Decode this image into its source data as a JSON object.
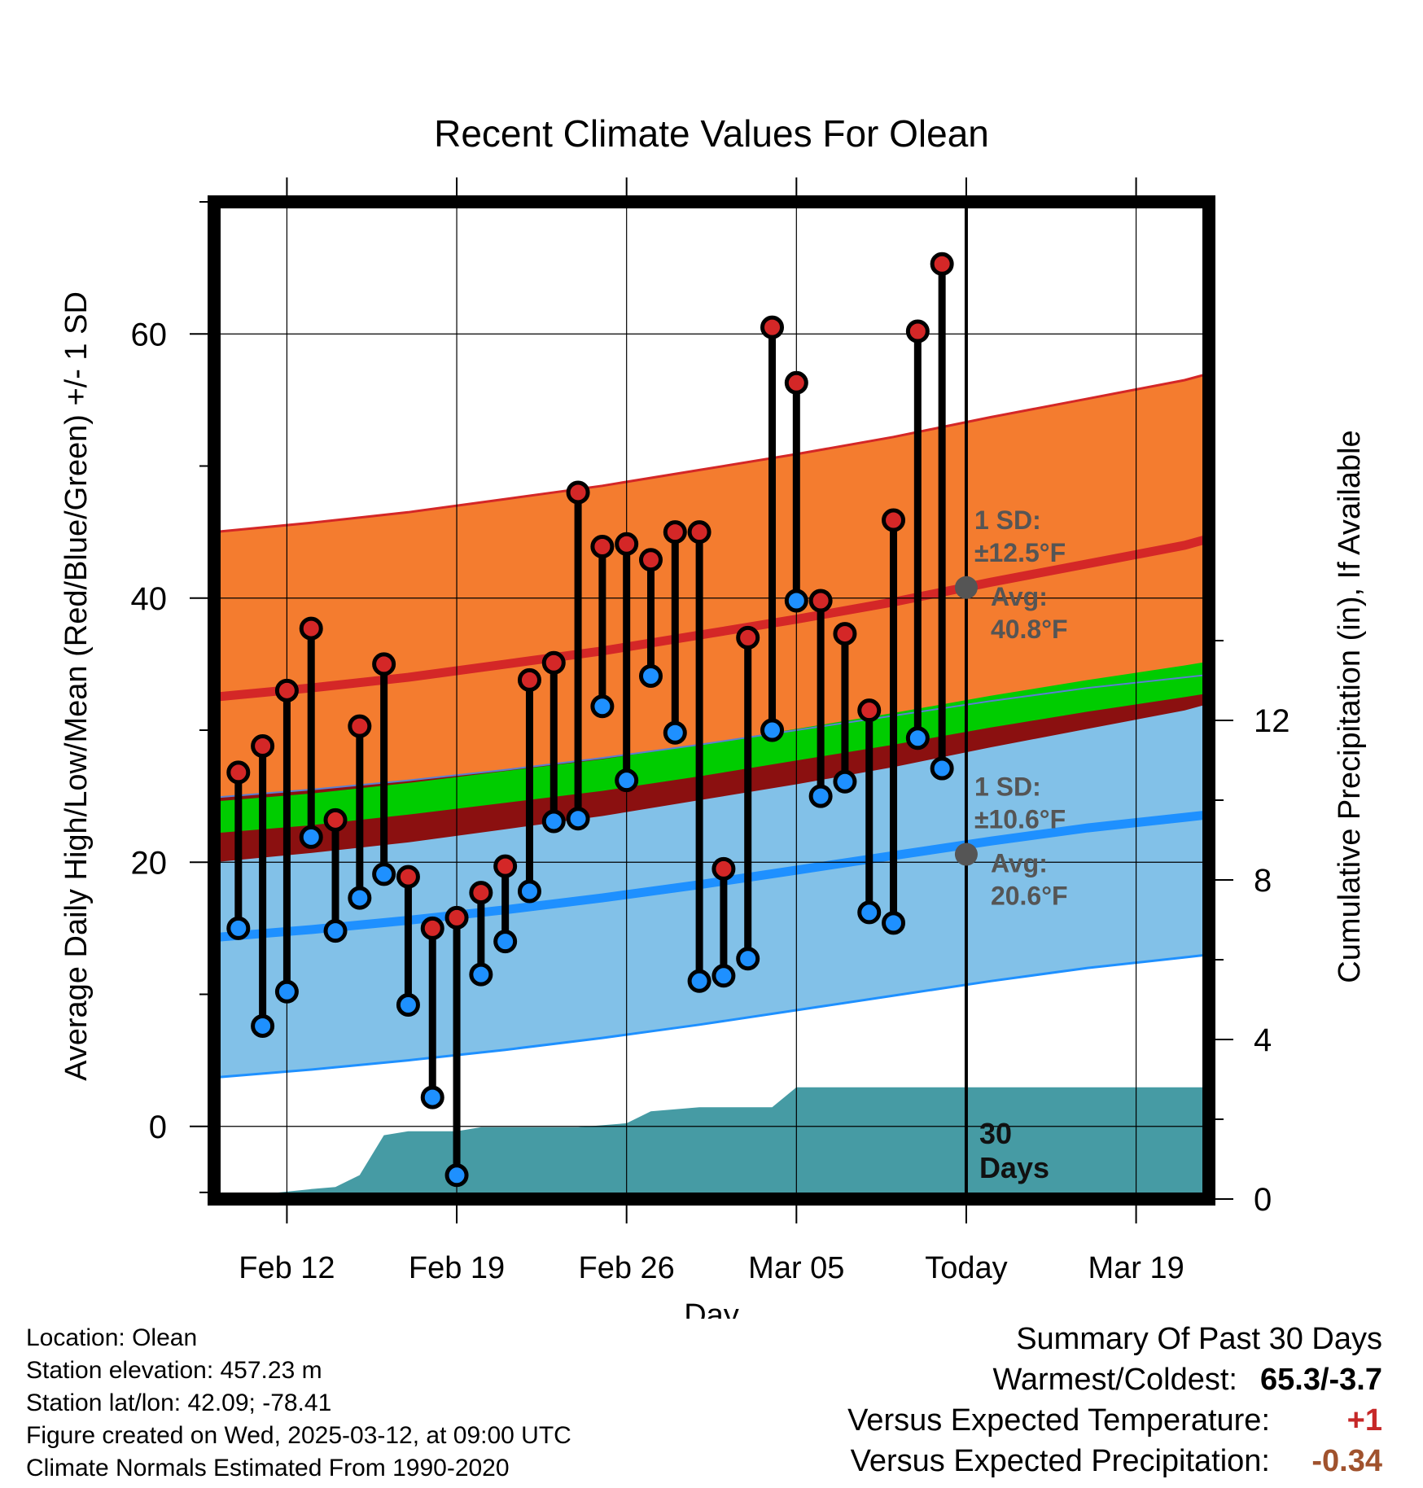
{
  "title": "Recent Climate Values For Olean",
  "xlabel": "Day",
  "ylabel_left": "Average Daily High/Low/Mean (Red/Blue/Green) +/- 1 SD",
  "ylabel_right": "Cumulative Precipitation (in), If Available",
  "annotations": {
    "high_sd_line1": "1 SD:",
    "high_sd_line2": "±12.5°F",
    "high_avg_line1": "Avg:",
    "high_avg_line2": "40.8°F",
    "low_sd_line1": "1 SD:",
    "low_sd_line2": "±10.6°F",
    "low_avg_line1": "Avg:",
    "low_avg_line2": "20.6°F",
    "days_line1": "30",
    "days_line2": "Days"
  },
  "info": {
    "location": "Location: Olean",
    "elevation": "Station elevation: 457.23 m",
    "latlon": "Station lat/lon: 42.09; -78.41",
    "created": "Figure created on Wed, 2025-03-12, at 09:00 UTC",
    "normals": "Climate Normals Estimated From 1990-2020"
  },
  "summary": {
    "title": "Summary Of Past 30 Days",
    "warm_cold_label": "Warmest/Coldest:",
    "warm_cold_value": "65.3/-3.7",
    "temp_label": "Versus Expected Temperature:",
    "temp_value": "+1",
    "precip_label": "Versus Expected Precipitation:",
    "precip_value": "-0.34"
  },
  "colors": {
    "high_band": "#f47c2f",
    "high_mean": "#d42727",
    "low_band": "#82c1e8",
    "low_mean": "#1e90ff",
    "mean_band": "#00cc00",
    "overlap": "#8b1010",
    "precip": "#469ba4",
    "high_dot": "#d42727",
    "low_dot": "#1e90ff",
    "annotation": "#555555",
    "temp_delta": "#c62828",
    "precip_delta": "#a0522d"
  },
  "chart_data": {
    "type": "line",
    "x_tick_labels": [
      "Feb 12",
      "Feb 19",
      "Feb 26",
      "Mar 05",
      "Today",
      "Mar 19"
    ],
    "x_tick_dates": [
      "2025-02-12",
      "2025-02-19",
      "2025-02-26",
      "2025-03-05",
      "2025-03-12",
      "2025-03-19"
    ],
    "x_range": [
      "2025-02-09",
      "2025-03-22"
    ],
    "today": "2025-03-12",
    "ylim": [
      -5.5,
      70
    ],
    "y_ticks": [
      0,
      20,
      40,
      60
    ],
    "y2lim": [
      0,
      25
    ],
    "y2_ticks": [
      0,
      4,
      8,
      12
    ],
    "grid": true,
    "daily_observations": {
      "dates": [
        "2025-02-10",
        "2025-02-11",
        "2025-02-12",
        "2025-02-13",
        "2025-02-14",
        "2025-02-15",
        "2025-02-16",
        "2025-02-17",
        "2025-02-18",
        "2025-02-19",
        "2025-02-20",
        "2025-02-21",
        "2025-02-22",
        "2025-02-23",
        "2025-02-24",
        "2025-02-25",
        "2025-02-26",
        "2025-02-27",
        "2025-02-28",
        "2025-03-01",
        "2025-03-02",
        "2025-03-03",
        "2025-03-04",
        "2025-03-05",
        "2025-03-06",
        "2025-03-07",
        "2025-03-08",
        "2025-03-09",
        "2025-03-10",
        "2025-03-11"
      ],
      "high": [
        26.8,
        28.8,
        33.0,
        37.7,
        23.2,
        30.3,
        35.0,
        18.9,
        15.0,
        15.8,
        17.7,
        19.7,
        33.8,
        35.1,
        48.0,
        43.9,
        44.1,
        42.9,
        45.0,
        45.0,
        19.5,
        37.0,
        60.5,
        56.3,
        39.8,
        37.3,
        31.5,
        45.9,
        60.2,
        65.3
      ],
      "low": [
        15.0,
        7.6,
        10.2,
        21.9,
        14.8,
        17.3,
        19.1,
        9.2,
        2.2,
        -3.7,
        11.5,
        14.0,
        17.8,
        23.1,
        23.3,
        31.8,
        26.2,
        34.1,
        29.8,
        11.0,
        11.4,
        12.7,
        30.0,
        39.8,
        25.0,
        26.1,
        16.2,
        15.4,
        29.4,
        27.1
      ]
    },
    "normal_curves": {
      "dates": [
        "2025-02-09",
        "2025-02-13",
        "2025-02-17",
        "2025-02-21",
        "2025-02-25",
        "2025-03-01",
        "2025-03-05",
        "2025-03-09",
        "2025-03-13",
        "2025-03-17",
        "2025-03-21",
        "2025-03-22"
      ],
      "high_mean": [
        32.5,
        33.2,
        34.0,
        35.0,
        36.0,
        37.2,
        38.4,
        39.7,
        41.2,
        42.6,
        44.0,
        44.5
      ],
      "high_sd": 12.5,
      "low_mean": [
        14.3,
        14.9,
        15.6,
        16.4,
        17.3,
        18.3,
        19.4,
        20.5,
        21.6,
        22.6,
        23.4,
        23.6
      ],
      "low_sd": 10.6,
      "mean_mean": [
        23.4,
        24.0,
        24.8,
        25.7,
        26.6,
        27.7,
        28.9,
        30.1,
        31.4,
        32.6,
        33.7,
        34.0
      ],
      "mean_sd_half_width": 1.2
    },
    "cumulative_precip": {
      "dates": [
        "2025-02-09",
        "2025-02-13",
        "2025-02-14",
        "2025-02-15",
        "2025-02-16",
        "2025-02-17",
        "2025-02-19",
        "2025-02-20",
        "2025-02-24",
        "2025-02-26",
        "2025-02-27",
        "2025-03-01",
        "2025-03-04",
        "2025-03-05",
        "2025-03-22"
      ],
      "values": [
        0.0,
        0.25,
        0.3,
        0.6,
        1.6,
        1.7,
        1.7,
        1.8,
        1.8,
        1.9,
        2.2,
        2.3,
        2.3,
        2.8,
        2.8
      ]
    }
  }
}
